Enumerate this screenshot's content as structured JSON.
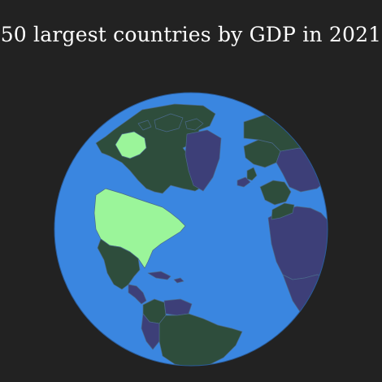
{
  "title": "50 largest countries by GDP in 2021",
  "map": {
    "projection": "orthographic globe",
    "colors": {
      "background": "#222222",
      "ocean": "#3a86e0",
      "country_top50": "#2e4d3c",
      "country_other": "#3d3f78",
      "country_highlighted": "#9bf59a",
      "border": "#4a6a8a"
    },
    "highlighted_country": "United States"
  }
}
